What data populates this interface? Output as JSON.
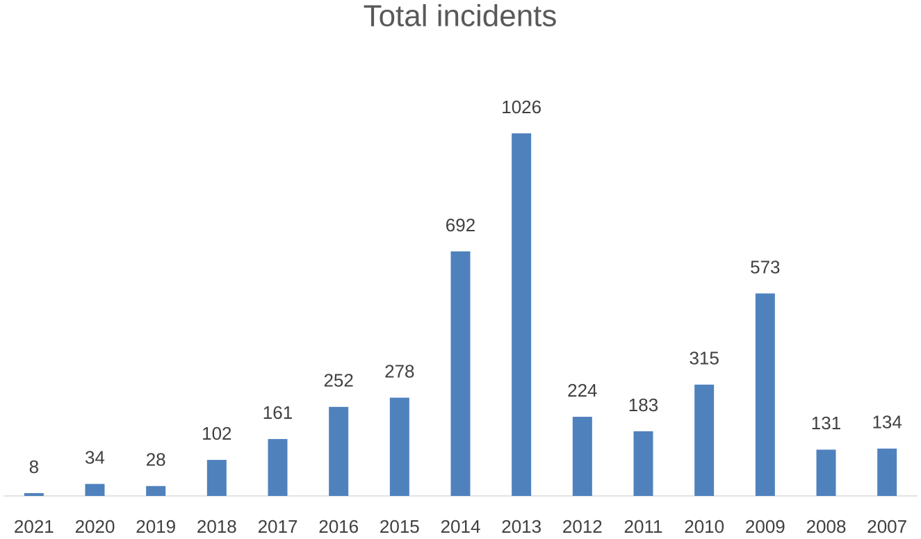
{
  "chart_data": {
    "type": "bar",
    "title": "Total incidents",
    "categories": [
      "2021",
      "2020",
      "2019",
      "2018",
      "2017",
      "2016",
      "2015",
      "2014",
      "2013",
      "2012",
      "2011",
      "2010",
      "2009",
      "2008",
      "2007"
    ],
    "values": [
      8,
      34,
      28,
      102,
      161,
      252,
      278,
      692,
      1026,
      224,
      183,
      315,
      573,
      131,
      134
    ],
    "color": "#4f81bd"
  }
}
